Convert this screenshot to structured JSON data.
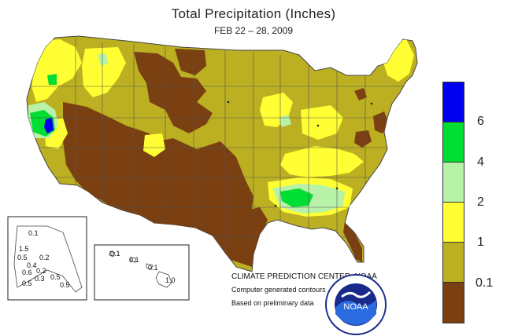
{
  "header": {
    "title": "Total Precipitation (Inches)",
    "subtitle": "FEB 22 – 28, 2009"
  },
  "legend": {
    "bins": [
      {
        "color": "#0000ee",
        "label": "6"
      },
      {
        "color": "#00dd33",
        "label": "4"
      },
      {
        "color": "#b8f2a8",
        "label": "2"
      },
      {
        "color": "#ffff33",
        "label": "1"
      },
      {
        "color": "#bcb022",
        "label": "0.1"
      },
      {
        "color": "#7a4012",
        "label": ""
      }
    ]
  },
  "credits": {
    "org": "CLIMATE PREDICTION CENTER, NOAA",
    "line1": "Computer generated contours",
    "line2": "Based on preliminary data"
  },
  "logo": {
    "text": "NOAA"
  },
  "insets": {
    "alaska_labels": [
      "0.1",
      "1.5",
      "0.5",
      "0.2",
      "0.4",
      "0.6",
      "0.2",
      "0.5",
      "0.3",
      "0.5",
      "0.5"
    ],
    "hawaii_labels": [
      "0.1",
      "0.1",
      "0.1",
      "1.0"
    ]
  },
  "colors": {
    "water": "#ffffff",
    "state_lines": "#555555"
  }
}
